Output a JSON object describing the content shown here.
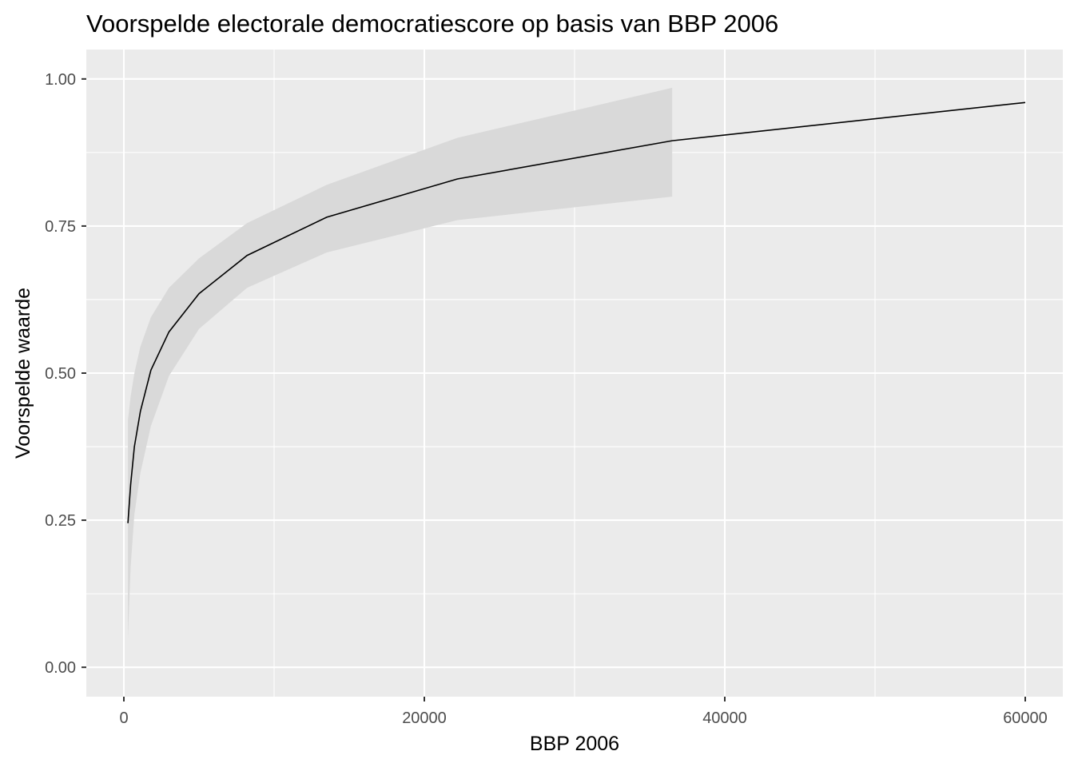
{
  "chart_data": {
    "type": "line",
    "title": "Voorspelde electorale democratiescore op basis van BBP 2006",
    "xlabel": "BBP 2006",
    "ylabel": "Voorspelde waarde",
    "xlim": [
      -2500,
      62500
    ],
    "ylim": [
      -0.05,
      1.05
    ],
    "x_ticks": [
      0,
      20000,
      40000,
      60000
    ],
    "x_tick_labels": [
      "0",
      "20000",
      "40000",
      "60000"
    ],
    "y_ticks": [
      0,
      0.25,
      0.5,
      0.75,
      1
    ],
    "y_tick_labels": [
      "0.00",
      "0.25",
      "0.50",
      "0.75",
      "1.00"
    ],
    "grid": true,
    "series": [
      {
        "x": [
          270,
          450,
          700,
          1100,
          1800,
          3000,
          5000,
          8200,
          13500,
          22200,
          36500,
          60000
        ],
        "y": [
          0.245,
          0.31,
          0.375,
          0.435,
          0.505,
          0.57,
          0.635,
          0.7,
          0.765,
          0.83,
          0.895,
          0.96
        ],
        "color": "#000000"
      }
    ],
    "ribbon": {
      "x": [
        270,
        450,
        700,
        1100,
        1800,
        3000,
        5000,
        8200,
        13500,
        22200,
        36500
      ],
      "lower": [
        0.05,
        0.17,
        0.26,
        0.33,
        0.41,
        0.495,
        0.575,
        0.645,
        0.705,
        0.76,
        0.8
      ],
      "upper": [
        0.42,
        0.46,
        0.5,
        0.545,
        0.595,
        0.645,
        0.695,
        0.755,
        0.82,
        0.9,
        0.985
      ],
      "color": "#d9d9d9"
    },
    "colors": {
      "panel": "#ebebeb",
      "grid": "#ffffff",
      "line": "#000000",
      "ribbon": "#d9d9d9"
    }
  }
}
